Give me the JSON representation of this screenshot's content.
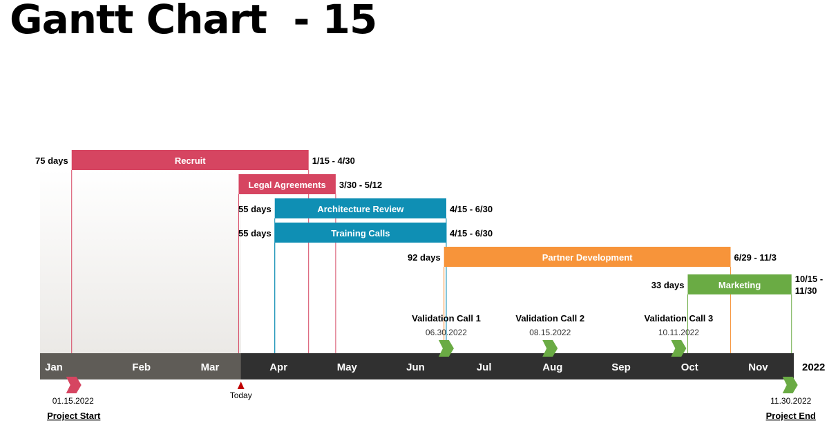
{
  "title": "Gantt Chart  - 15",
  "chart_data": {
    "type": "gantt",
    "year": "2022",
    "months": [
      "Jan",
      "Feb",
      "Mar",
      "Apr",
      "May",
      "Jun",
      "Jul",
      "Aug",
      "Sep",
      "Oct",
      "Nov"
    ],
    "tasks": [
      {
        "name": "Recruit",
        "start": "2022-01-15",
        "end": "2022-04-30",
        "duration_label": "75 days",
        "range_label": "1/15 - 4/30",
        "color": "#d64561"
      },
      {
        "name": "Legal Agreements",
        "start": "2022-03-30",
        "end": "2022-05-12",
        "duration_label": "",
        "range_label": "3/30 - 5/12",
        "color": "#d64561"
      },
      {
        "name": "Architecture Review",
        "start": "2022-04-15",
        "end": "2022-06-30",
        "duration_label": "55 days",
        "range_label": "4/15 - 6/30",
        "color": "#0f8fb4"
      },
      {
        "name": "Training Calls",
        "start": "2022-04-15",
        "end": "2022-06-30",
        "duration_label": "55 days",
        "range_label": "4/15 - 6/30",
        "color": "#0f8fb4"
      },
      {
        "name": "Partner Development",
        "start": "2022-06-29",
        "end": "2022-11-03",
        "duration_label": "92 days",
        "range_label": "6/29 - 11/3",
        "color": "#f7943a"
      },
      {
        "name": "Marketing",
        "start": "2022-10-15",
        "end": "2022-11-30",
        "duration_label": "33 days",
        "range_label": "10/15 - 11/30",
        "color": "#6aab44"
      }
    ],
    "milestones": [
      {
        "name": "Validation Call 1",
        "date": "2022-06-30",
        "date_label": "06.30.2022",
        "color": "#6aab44"
      },
      {
        "name": "Validation Call 2",
        "date": "2022-08-15",
        "date_label": "08.15.2022",
        "color": "#6aab44"
      },
      {
        "name": "Validation Call 3",
        "date": "2022-10-11",
        "date_label": "10.11.2022",
        "color": "#6aab44"
      }
    ],
    "project_start": {
      "label": "Project Start",
      "date": "2022-01-15",
      "date_label": "01.15.2022",
      "color": "#d64561"
    },
    "project_end": {
      "label": "Project End",
      "date": "2022-11-30",
      "date_label": "11.30.2022",
      "color": "#6aab44"
    },
    "today": {
      "label": "Today",
      "date": "2022-03-31",
      "color": "#c00000"
    },
    "axis": {
      "elapsed_color": "#5f5c57",
      "remaining_color": "#303030"
    }
  }
}
